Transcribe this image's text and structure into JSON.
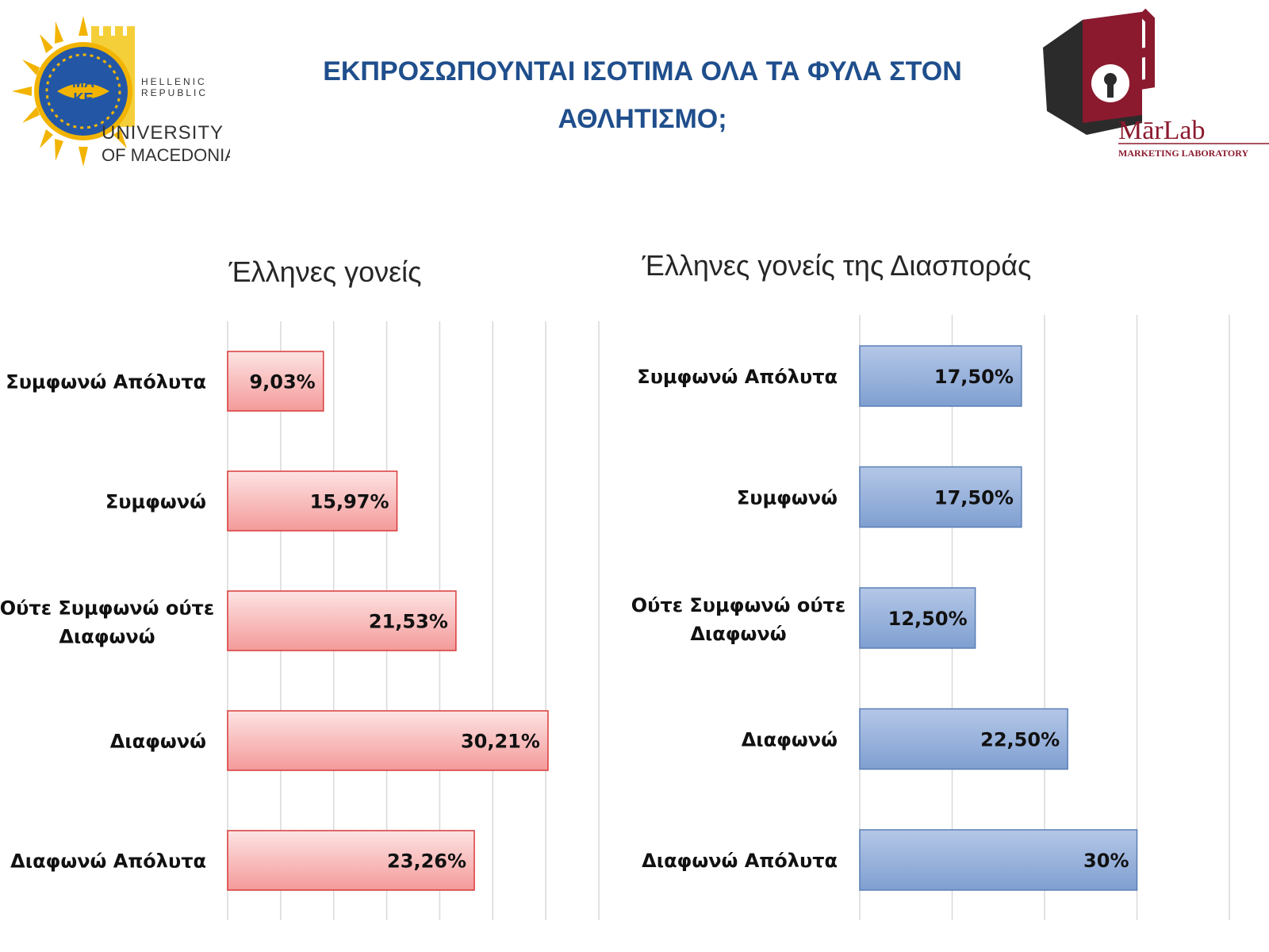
{
  "slide": {
    "title_line1": "ΕΚΠΡΟΣΩΠΟΥΝΤΑΙ ΙΣΟΤΙΜΑ ΟΛΑ ΤΑ ΦΥΛΑ ΣΤΟΝ",
    "title_line2": "ΑΘΛΗΤΙΣΜΟ;",
    "title_color": "#1f4e8c"
  },
  "logos": {
    "university": {
      "seal_text_top": "ΜΑ",
      "seal_text_bottom": "ΚΕ",
      "line1": "HELLENIC",
      "line2": "REPUBLIC",
      "line3": "UNIVERSITY",
      "line4": "OF MACEDONIA"
    },
    "marlab": {
      "name": "MārLab",
      "tagline": "MARKETING LABORATORY",
      "brand_color": "#8b1a2e"
    }
  },
  "chart_data": [
    {
      "type": "bar",
      "orientation": "horizontal",
      "title": "Έλληνες γονείς",
      "categories": [
        "Συμφωνώ Απόλυτα",
        "Συμφωνώ",
        "Ούτε Συμφωνώ ούτε Διαφωνώ",
        "Διαφωνώ",
        "Διαφωνώ Απόλυτα"
      ],
      "values": [
        9.03,
        15.97,
        21.53,
        30.21,
        23.26
      ],
      "value_labels": [
        "9,03%",
        "15,97%",
        "21,53%",
        "30,21%",
        "23,26%"
      ],
      "xlim": [
        0,
        35
      ],
      "grid": true,
      "bar_color": "#f4a0a0",
      "bar_border_color": "#d93a3a"
    },
    {
      "type": "bar",
      "orientation": "horizontal",
      "title": "Έλληνες γονείς της Διασποράς",
      "categories": [
        "Συμφωνώ Απόλυτα",
        "Συμφωνώ",
        "Ούτε Συμφωνώ ούτε Διαφωνώ",
        "Διαφωνώ",
        "Διαφωνώ Απόλυτα"
      ],
      "values": [
        17.5,
        17.5,
        12.5,
        22.5,
        30
      ],
      "value_labels": [
        "17,50%",
        "17,50%",
        "12,50%",
        "22,50%",
        "30%"
      ],
      "xlim": [
        0,
        40
      ],
      "grid": true,
      "bar_color": "#8faadc",
      "bar_border_color": "#5a7fb5"
    }
  ]
}
